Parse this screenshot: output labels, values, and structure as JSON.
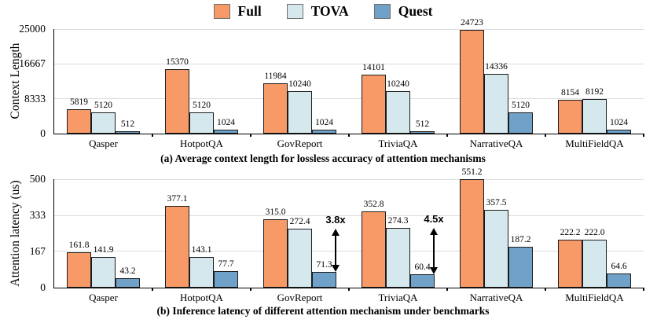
{
  "legend": {
    "items": [
      {
        "label": "Full",
        "color": "#F89A68"
      },
      {
        "label": "TOVA",
        "color": "#D5E8EE"
      },
      {
        "label": "Quest",
        "color": "#70A1C8"
      }
    ]
  },
  "colors": {
    "bar_border": "#1c1c1c",
    "gridline": "#dcdcdc",
    "axis": "#000000",
    "annotation": "#000000"
  },
  "chart_data": [
    {
      "id": "context-length",
      "type": "bar",
      "title": "(a) Average context length for lossless accuracy of attention mechanisms",
      "ylabel": "Context Length",
      "ylim": [
        0,
        25000
      ],
      "yticks": [
        "0",
        "8333",
        "16667",
        "25000"
      ],
      "grid": true,
      "legend_position": "top-center",
      "categories": [
        "Qasper",
        "HotpotQA",
        "GovReport",
        "TriviaQA",
        "NarrativeQA",
        "MultiFieldQA"
      ],
      "series": [
        {
          "name": "Full",
          "color": "#F89A68",
          "values": [
            5819,
            15370,
            11984,
            14101,
            24723,
            8154
          ],
          "labels": [
            "5819",
            "15370",
            "11984",
            "14101",
            "24723",
            "8154"
          ]
        },
        {
          "name": "TOVA",
          "color": "#D5E8EE",
          "values": [
            5120,
            5120,
            10240,
            10240,
            14336,
            8192
          ],
          "labels": [
            "5120",
            "5120",
            "10240",
            "10240",
            "14336",
            "8192"
          ]
        },
        {
          "name": "Quest",
          "color": "#70A1C8",
          "values": [
            512,
            1024,
            1024,
            512,
            5120,
            1024
          ],
          "labels": [
            "512",
            "1024",
            "1024",
            "512",
            "5120",
            "1024"
          ]
        }
      ],
      "annotations": []
    },
    {
      "id": "attention-latency",
      "type": "bar",
      "title": "(b) Inference latency of different attention mechanism under benchmarks",
      "ylabel": "Attention latency (us)",
      "ylim": [
        0,
        500
      ],
      "yticks": [
        "0",
        "167",
        "333",
        "500"
      ],
      "grid": true,
      "legend_position": "top-center",
      "categories": [
        "Qasper",
        "HotpotQA",
        "GovReport",
        "TriviaQA",
        "NarrativeQA",
        "MultiFieldQA"
      ],
      "series": [
        {
          "name": "Full",
          "color": "#F89A68",
          "values": [
            161.8,
            377.1,
            315.0,
            352.8,
            551.2,
            222.2
          ],
          "labels": [
            "161.8",
            "377.1",
            "315.0",
            "352.8",
            "551.2",
            "222.2"
          ]
        },
        {
          "name": "TOVA",
          "color": "#D5E8EE",
          "values": [
            141.9,
            143.1,
            272.4,
            274.3,
            357.5,
            222.0
          ],
          "labels": [
            "141.9",
            "143.1",
            "272.4",
            "274.3",
            "357.5",
            "222.0"
          ]
        },
        {
          "name": "Quest",
          "color": "#70A1C8",
          "values": [
            43.2,
            77.7,
            71.3,
            60.4,
            187.2,
            64.6
          ],
          "labels": [
            "43.2",
            "77.7",
            "71.3",
            "60.4",
            "187.2",
            "64.6"
          ]
        }
      ],
      "annotations": [
        {
          "label": "3.8x",
          "category_index": 2,
          "from_value": 272.4,
          "to_value": 71.3
        },
        {
          "label": "4.5x",
          "category_index": 3,
          "from_value": 274.3,
          "to_value": 60.4
        }
      ]
    }
  ]
}
